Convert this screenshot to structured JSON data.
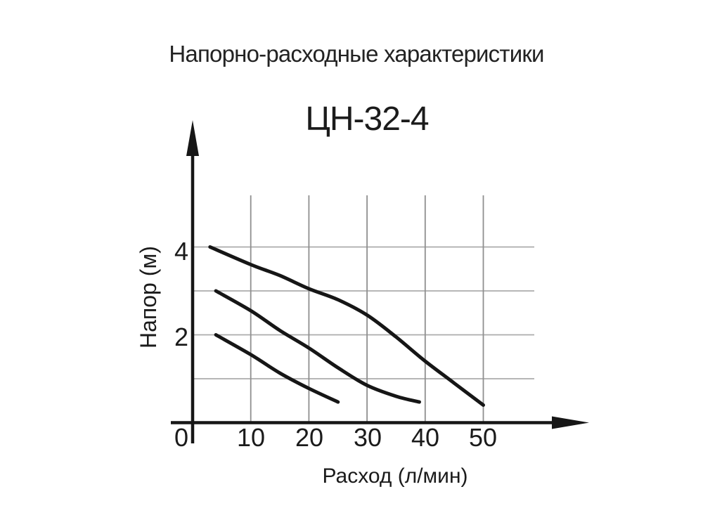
{
  "page": {
    "background_color": "#ffffff"
  },
  "header": {
    "title": "Напорно-расходные характеристики",
    "pump_model": "ЦН-32-4"
  },
  "chart_data": {
    "type": "line",
    "title": "ЦН-32-4",
    "subtitle_above": "Напорно-расходные характеристики",
    "xlabel": "Расход (л/мин)",
    "ylabel": "Напор (м)",
    "xlim": [
      0,
      60
    ],
    "ylim": [
      0,
      5.2
    ],
    "grid": "on",
    "legend": "none",
    "x_ticks": [
      0,
      10,
      20,
      30,
      40,
      50
    ],
    "y_ticks": [
      2,
      4
    ],
    "grid_vertical_x": [
      10,
      20,
      30,
      40,
      50
    ],
    "grid_horizontal_y": [
      1,
      2,
      3,
      4
    ],
    "series": [
      {
        "name": "curve-top-speed-3",
        "points": [
          [
            3,
            4.0
          ],
          [
            10,
            3.6
          ],
          [
            15,
            3.35
          ],
          [
            20,
            3.05
          ],
          [
            25,
            2.8
          ],
          [
            30,
            2.45
          ],
          [
            35,
            1.95
          ],
          [
            40,
            1.4
          ],
          [
            45,
            0.9
          ],
          [
            50,
            0.4
          ]
        ]
      },
      {
        "name": "curve-middle-speed-2",
        "points": [
          [
            4,
            3.0
          ],
          [
            10,
            2.55
          ],
          [
            15,
            2.1
          ],
          [
            20,
            1.7
          ],
          [
            25,
            1.25
          ],
          [
            30,
            0.85
          ],
          [
            35,
            0.6
          ],
          [
            39,
            0.47
          ]
        ]
      },
      {
        "name": "curve-bottom-speed-1",
        "points": [
          [
            4,
            2.0
          ],
          [
            10,
            1.55
          ],
          [
            15,
            1.13
          ],
          [
            20,
            0.78
          ],
          [
            25,
            0.47
          ]
        ]
      }
    ],
    "colors": {
      "curve": "#161616",
      "axis": "#161616",
      "grid_vertical": "#8f8f8f",
      "grid_horizontal": "#ababab",
      "text": "#202020"
    }
  }
}
